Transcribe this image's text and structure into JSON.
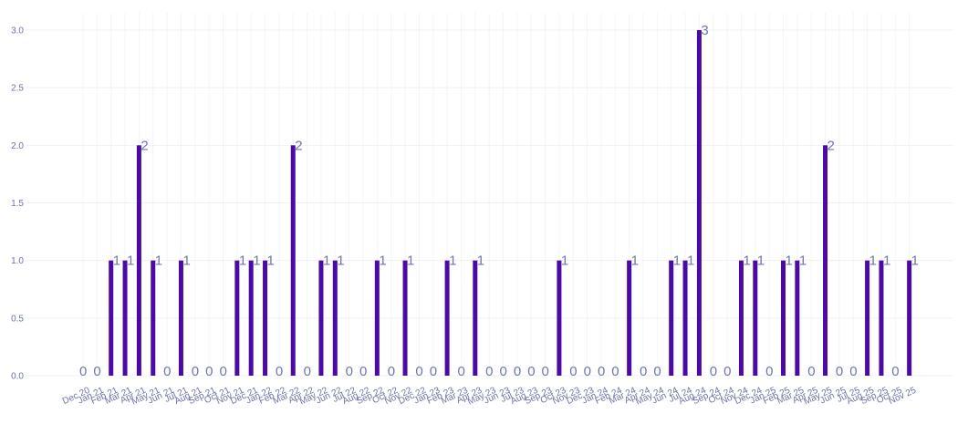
{
  "chart_data": {
    "type": "bar",
    "title": "",
    "xlabel": "",
    "ylabel": "",
    "ylim": [
      0,
      3
    ],
    "yticks": [
      "0.0",
      "0.5",
      "1.0",
      "1.5",
      "2.0",
      "2.5",
      "3.0"
    ],
    "grid": true,
    "bar_color": "#4b0aa4",
    "categories": [
      "Dec 20",
      "Jan 21",
      "Feb 21",
      "Mar 21",
      "Apr 21",
      "May 21",
      "Jun 21",
      "Jul 21",
      "Aug 21",
      "Sep 21",
      "Oct 21",
      "Nov 21",
      "Dec 21",
      "Jan 22",
      "Feb 22",
      "Mar 22",
      "Apr 22",
      "May 22",
      "Jun 22",
      "Jul 22",
      "Aug 22",
      "Sep 22",
      "Oct 22",
      "Nov 22",
      "Dec 22",
      "Jan 23",
      "Feb 23",
      "Mar 23",
      "Apr 23",
      "May 23",
      "Jun 23",
      "Jul 23",
      "Aug 23",
      "Sep 23",
      "Oct 23",
      "Nov 23",
      "Dec 23",
      "Jan 24",
      "Feb 24",
      "Mar 24",
      "Apr 24",
      "May 24",
      "Jun 24",
      "Jul 24",
      "Aug 24",
      "Sep 24",
      "Oct 24",
      "Nov 24",
      "Dec 24",
      "Jan 25",
      "Feb 25",
      "Mar 25",
      "Apr 25",
      "May 25",
      "Jun 25",
      "Jul 25",
      "Aug 25",
      "Sep 25",
      "Oct 25",
      "Nov 25"
    ],
    "values": [
      0,
      0,
      1,
      1,
      2,
      1,
      0,
      1,
      0,
      0,
      0,
      1,
      1,
      1,
      0,
      2,
      0,
      1,
      1,
      0,
      0,
      1,
      0,
      1,
      0,
      0,
      1,
      0,
      1,
      0,
      0,
      0,
      0,
      0,
      1,
      0,
      0,
      0,
      0,
      1,
      0,
      0,
      1,
      1,
      3,
      0,
      0,
      1,
      1,
      0,
      1,
      1,
      0,
      2,
      0,
      0,
      1,
      1,
      0,
      1
    ]
  }
}
